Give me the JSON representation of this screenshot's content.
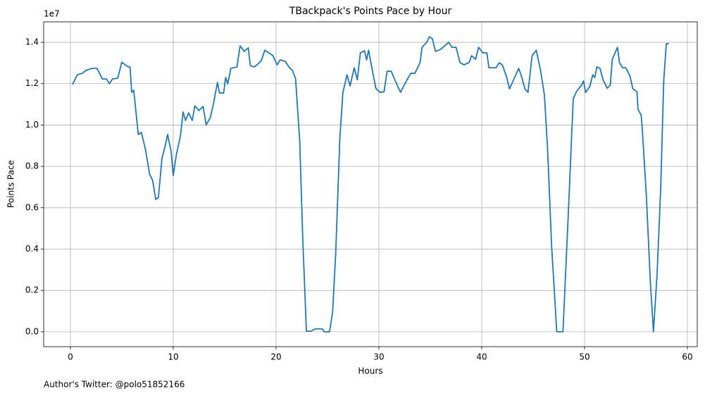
{
  "chart_data": {
    "type": "line",
    "title": "TBackpack's Points Pace by Hour",
    "x_label": "Hours",
    "y_label": "Points Pace",
    "y_offset_label": "1e7",
    "footnote": "Author's Twitter: @polo51852166",
    "color": "#1f77b4",
    "grid": true,
    "xlim": [
      -2.6,
      60.96
    ],
    "ylim": [
      -0.072,
      1.499
    ],
    "xticks": [
      0,
      10,
      20,
      30,
      40,
      50,
      60
    ],
    "yticks": [
      {
        "value": 0,
        "label": "0.0"
      },
      0.2,
      0.4,
      0.6,
      0.8,
      {
        "value": 1,
        "label": "1.0"
      },
      1.2,
      1.4
    ],
    "x": [
      0.2,
      0.68,
      1.16,
      1.5,
      2.1,
      2.6,
      3.1,
      3.5,
      3.8,
      4.1,
      4.6,
      5.0,
      5.5,
      5.8,
      5.96,
      6.16,
      6.6,
      6.9,
      7.3,
      7.7,
      8.0,
      8.3,
      8.56,
      8.9,
      9.25,
      9.45,
      9.8,
      10.0,
      10.3,
      10.7,
      10.96,
      11.2,
      11.5,
      11.85,
      12.1,
      12.5,
      12.9,
      13.2,
      13.6,
      13.9,
      14.3,
      14.5,
      14.9,
      15.1,
      15.3,
      15.6,
      16.2,
      16.5,
      16.9,
      17.3,
      17.5,
      17.9,
      18.3,
      18.6,
      18.9,
      19.3,
      19.7,
      20.1,
      20.4,
      20.9,
      21.3,
      21.6,
      21.9,
      22.3,
      22.6,
      22.95,
      23.4,
      23.8,
      24.5,
      24.7,
      25.2,
      25.5,
      25.8,
      26.2,
      26.5,
      26.9,
      27.2,
      27.6,
      27.9,
      28.2,
      28.6,
      28.8,
      29.0,
      29.3,
      29.7,
      30.1,
      30.5,
      30.8,
      31.2,
      31.6,
      32.1,
      32.6,
      33.1,
      33.5,
      34.0,
      34.2,
      34.7,
      34.9,
      35.2,
      35.5,
      36.0,
      36.4,
      36.8,
      37.1,
      37.5,
      37.9,
      38.3,
      38.8,
      39.0,
      39.4,
      39.7,
      40.1,
      40.5,
      40.7,
      41.4,
      41.7,
      42.0,
      42.4,
      42.7,
      43.2,
      43.6,
      43.9,
      44.2,
      44.5,
      44.9,
      45.3,
      45.7,
      46.1,
      46.4,
      46.8,
      47.3,
      47.9,
      48.4,
      48.9,
      49.25,
      49.7,
      49.9,
      50.1,
      50.5,
      50.8,
      51.0,
      51.2,
      51.5,
      51.8,
      52.2,
      52.5,
      52.7,
      53.2,
      53.4,
      53.7,
      54.0,
      54.4,
      54.7,
      55.1,
      55.2,
      55.5,
      55.6,
      56.0,
      56.4,
      56.7,
      57.05,
      57.4,
      57.7,
      57.95,
      58.2
    ],
    "values": [
      1.196,
      1.243,
      1.25,
      1.264,
      1.274,
      1.274,
      1.223,
      1.223,
      1.2,
      1.223,
      1.226,
      1.304,
      1.284,
      1.281,
      1.158,
      1.168,
      0.954,
      0.964,
      0.882,
      0.763,
      0.732,
      0.64,
      0.65,
      0.838,
      0.906,
      0.954,
      0.872,
      0.756,
      0.855,
      0.947,
      1.063,
      1.022,
      1.059,
      1.022,
      1.093,
      1.07,
      1.09,
      1.001,
      1.035,
      1.1,
      1.206,
      1.155,
      1.155,
      1.23,
      1.199,
      1.274,
      1.281,
      1.383,
      1.356,
      1.373,
      1.287,
      1.281,
      1.298,
      1.315,
      1.362,
      1.349,
      1.335,
      1.291,
      1.315,
      1.308,
      1.277,
      1.264,
      1.223,
      0.923,
      0.446,
      0.003,
      0.003,
      0.014,
      0.014,
      0,
      0,
      0.095,
      0.378,
      0.933,
      1.158,
      1.243,
      1.189,
      1.277,
      1.219,
      1.349,
      1.359,
      1.315,
      1.362,
      1.281,
      1.178,
      1.158,
      1.161,
      1.26,
      1.26,
      1.213,
      1.158,
      1.206,
      1.25,
      1.25,
      1.301,
      1.376,
      1.403,
      1.427,
      1.417,
      1.356,
      1.366,
      1.383,
      1.4,
      1.376,
      1.376,
      1.301,
      1.291,
      1.304,
      1.335,
      1.318,
      1.376,
      1.349,
      1.349,
      1.277,
      1.277,
      1.301,
      1.291,
      1.236,
      1.175,
      1.23,
      1.274,
      1.23,
      1.175,
      1.158,
      1.335,
      1.362,
      1.27,
      1.144,
      0.889,
      0.412,
      0,
      0,
      0.548,
      1.127,
      1.165,
      1.192,
      1.213,
      1.158,
      1.185,
      1.243,
      1.23,
      1.281,
      1.274,
      1.219,
      1.178,
      1.192,
      1.318,
      1.376,
      1.301,
      1.277,
      1.277,
      1.24,
      1.175,
      1.161,
      1.076,
      1.049,
      0.991,
      0.668,
      0.242,
      0,
      0.276,
      0.685,
      1.213,
      1.393,
      1.393
    ]
  }
}
